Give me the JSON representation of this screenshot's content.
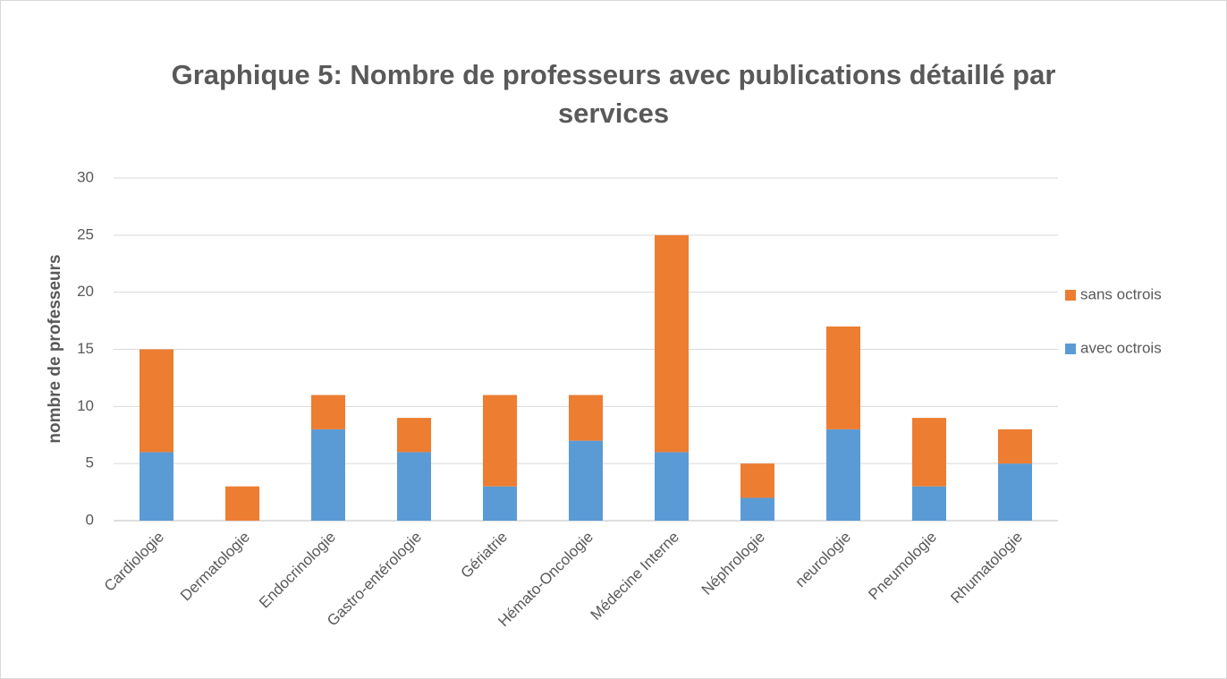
{
  "chart_data": {
    "type": "bar",
    "stacked": true,
    "title": "Graphique 5: Nombre de professeurs avec publications détaillé par services",
    "y_label": "nombre de professeurs",
    "categories": [
      "Cardiologie",
      "Dermatologie",
      "Endocrinologie",
      "Gastro-entérologie",
      "Gériatrie",
      "Hémato-Oncologie",
      "Médecine Interne",
      "Néphrologie",
      "neurologie",
      "Pneumologie",
      "Rhumatologie"
    ],
    "series": [
      {
        "name": "avec octrois",
        "color": "#5b9bd5",
        "values": [
          6,
          0,
          8,
          6,
          3,
          7,
          6,
          2,
          8,
          3,
          5
        ]
      },
      {
        "name": "sans octrois",
        "color": "#ed7d31",
        "values": [
          9,
          3,
          3,
          3,
          8,
          4,
          19,
          3,
          9,
          6,
          3
        ]
      }
    ],
    "ylim": [
      0,
      30
    ],
    "yticks": [
      0,
      5,
      10,
      15,
      20,
      25,
      30
    ],
    "grid": true,
    "legend": "right"
  }
}
